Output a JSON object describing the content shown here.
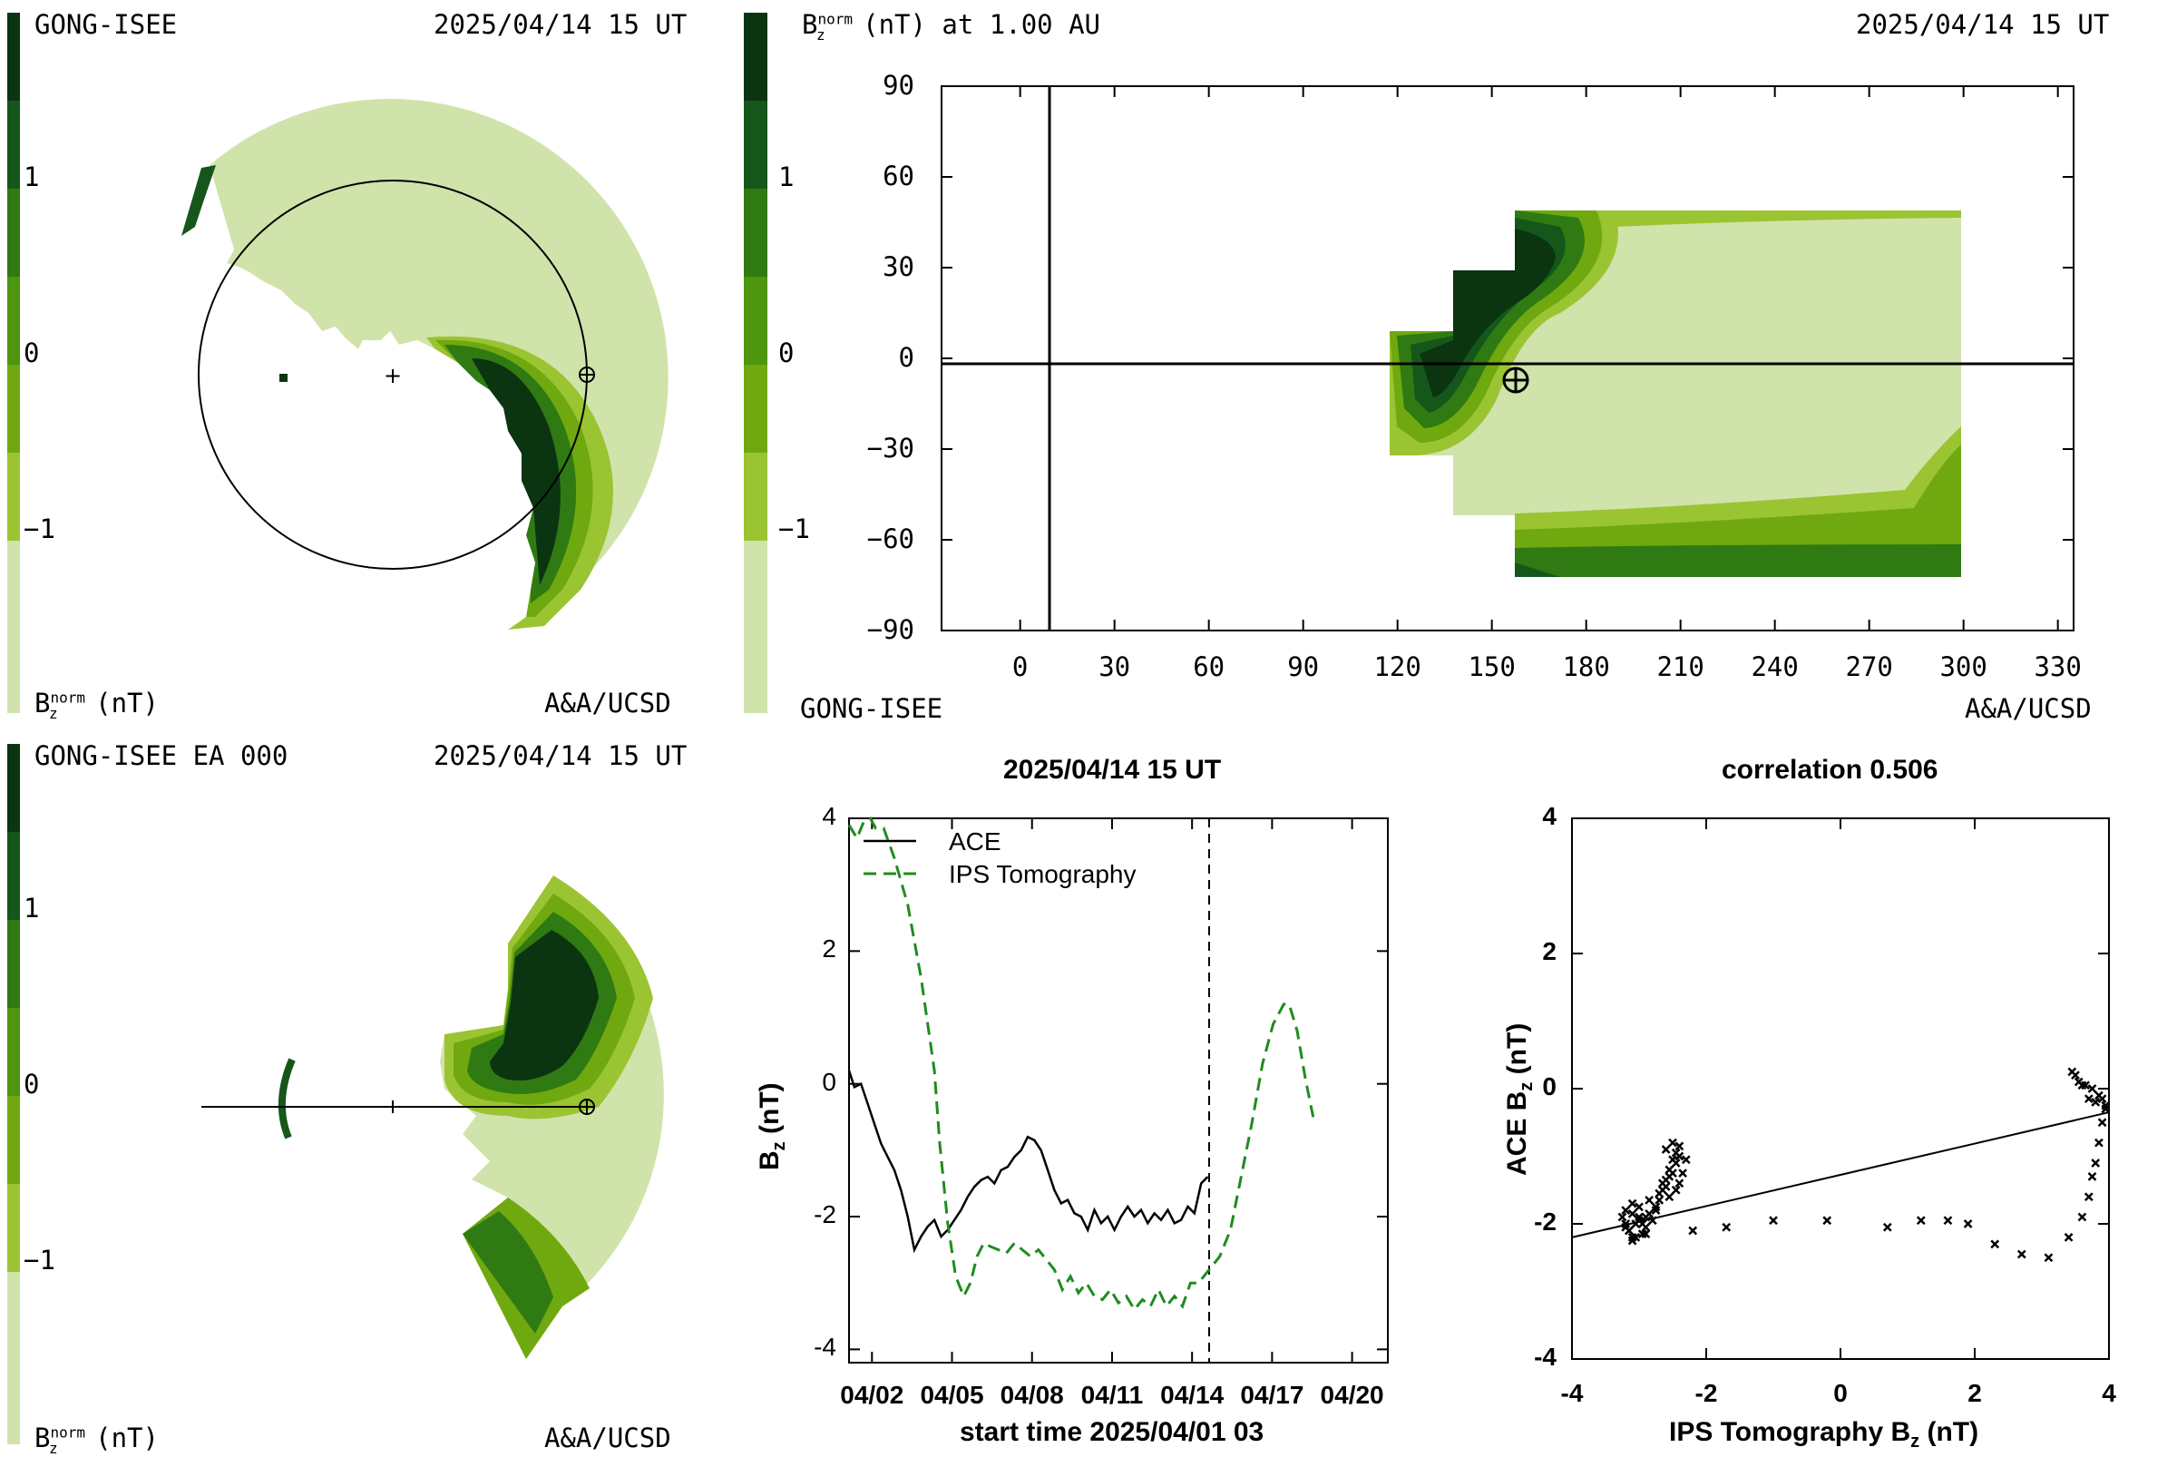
{
  "colors": {
    "levels": [
      "#d0e3ab",
      "#9ac432",
      "#6fa90f",
      "#4e9510",
      "#2f7a12",
      "#15571b",
      "#0b3411"
    ],
    "obs": "#000000",
    "model": "#1f8c1f"
  },
  "panel_tl": {
    "left_label": "GONG-ISEE",
    "right_label": "2025/04/14 15 UT",
    "bottom_left_label": "B",
    "bottom_left_sup": "norm",
    "bottom_left_sub": "z",
    "bottom_left_unit": "(nT)",
    "bottom_right_label": "A&A/UCSD"
  },
  "panel_tr": {
    "title": "B",
    "title_sup": "norm",
    "title_sub": "z",
    "title_rest": "(nT) at 1.00 AU",
    "right_label": "2025/04/14 15 UT",
    "bottom_left_label": "GONG-ISEE",
    "bottom_right_label": "A&A/UCSD",
    "earth_symbol": "⊕"
  },
  "panel_bl": {
    "left_label": "GONG-ISEE EA 000",
    "right_label": "2025/04/14 15 UT",
    "bottom_left_label": "B",
    "bottom_left_sup": "norm",
    "bottom_left_sub": "z",
    "bottom_left_unit": "(nT)",
    "bottom_right_label": "A&A/UCSD"
  },
  "colorbar_ticks": [
    "1",
    "0",
    "−1"
  ],
  "chart_data": [
    {
      "type": "heatmap",
      "title": "B_z^norm (nT) at 1.00 AU",
      "xticks": [
        "0",
        "30",
        "60",
        "90",
        "120",
        "150",
        "180",
        "210",
        "240",
        "270",
        "300",
        "330"
      ],
      "yticks": [
        "90",
        "60",
        "30",
        "0",
        "−30",
        "−60",
        "−90"
      ],
      "xlim": [
        -25,
        335
      ],
      "ylim": [
        -90,
        90
      ],
      "earth": [
        150,
        -5
      ]
    },
    {
      "type": "line",
      "title": "2025/04/14 15 UT",
      "xlabel": "start time 2025/04/01 03",
      "ylabel": "B",
      "ylabel_sub": "z",
      "ylabel_unit": "(nT)",
      "xticks": [
        "04/02",
        "04/05",
        "04/08",
        "04/11",
        "04/14",
        "04/17",
        "04/20"
      ],
      "yticks": [
        "4",
        "2",
        "0",
        "-2",
        "-4"
      ],
      "xlim": [
        0,
        20.2
      ],
      "ylim": [
        -4.2,
        4
      ],
      "now": 13.5,
      "legend": [
        "ACE",
        "IPS Tomography"
      ],
      "series": [
        {
          "name": "ACE",
          "x": [
            0,
            0.2,
            0.45,
            0.7,
            0.95,
            1.2,
            1.45,
            1.7,
            1.95,
            2.2,
            2.45,
            2.7,
            2.95,
            3.2,
            3.45,
            3.7,
            3.95,
            4.2,
            4.45,
            4.7,
            4.95,
            5.2,
            5.45,
            5.7,
            5.95,
            6.2,
            6.45,
            6.7,
            6.95,
            7.2,
            7.45,
            7.7,
            7.95,
            8.2,
            8.45,
            8.7,
            8.95,
            9.2,
            9.45,
            9.7,
            9.95,
            10.2,
            10.45,
            10.7,
            10.95,
            11.2,
            11.45,
            11.7,
            11.95,
            12.2,
            12.45,
            12.7,
            12.95,
            13.2,
            13.45
          ],
          "y": [
            0.2,
            -0.05,
            0.0,
            -0.3,
            -0.6,
            -0.9,
            -1.1,
            -1.3,
            -1.6,
            -2.0,
            -2.5,
            -2.3,
            -2.15,
            -2.05,
            -2.3,
            -2.2,
            -2.05,
            -1.9,
            -1.7,
            -1.55,
            -1.45,
            -1.4,
            -1.5,
            -1.3,
            -1.25,
            -1.1,
            -1.0,
            -0.8,
            -0.85,
            -1.0,
            -1.3,
            -1.6,
            -1.8,
            -1.75,
            -1.95,
            -2.0,
            -2.2,
            -1.9,
            -2.1,
            -2.0,
            -2.2,
            -2.0,
            -1.85,
            -2.0,
            -1.9,
            -2.1,
            -1.95,
            -2.05,
            -1.9,
            -2.1,
            -2.05,
            -1.85,
            -1.95,
            -1.5,
            -1.4
          ]
        },
        {
          "name": "IPS Tomography",
          "x": [
            0,
            0.3,
            0.55,
            0.8,
            1.0,
            1.3,
            1.7,
            2.2,
            2.7,
            3.2,
            3.4,
            3.7,
            4.0,
            4.3,
            4.55,
            4.8,
            5.05,
            5.3,
            5.6,
            5.9,
            6.2,
            6.5,
            6.8,
            7.1,
            7.4,
            7.7,
            8.0,
            8.3,
            8.6,
            8.9,
            9.2,
            9.5,
            9.8,
            10.1,
            10.4,
            10.7,
            11.0,
            11.3,
            11.6,
            11.9,
            12.2,
            12.5,
            12.8,
            13.1,
            13.5,
            13.9,
            14.3,
            14.7,
            15.1,
            15.5,
            15.9,
            16.3,
            16.5,
            16.8,
            17.1,
            17.4
          ],
          "y": [
            3.9,
            3.7,
            3.95,
            4.2,
            3.85,
            3.85,
            3.4,
            2.7,
            1.6,
            0.2,
            -0.9,
            -2.1,
            -2.9,
            -3.2,
            -3.0,
            -2.6,
            -2.4,
            -2.45,
            -2.5,
            -2.55,
            -2.4,
            -2.5,
            -2.6,
            -2.5,
            -2.65,
            -2.8,
            -3.1,
            -2.9,
            -3.15,
            -3.0,
            -3.2,
            -3.25,
            -3.1,
            -3.3,
            -3.2,
            -3.4,
            -3.25,
            -3.35,
            -3.1,
            -3.35,
            -3.2,
            -3.35,
            -3.0,
            -3.0,
            -2.8,
            -2.6,
            -2.2,
            -1.4,
            -0.6,
            0.3,
            0.9,
            1.2,
            1.2,
            0.8,
            0.1,
            -0.5
          ]
        }
      ]
    },
    {
      "type": "scatter",
      "title": "correlation 0.506",
      "xlabel": "IPS Tomography B",
      "xlabel_sub": "z",
      "xlabel_unit": "(nT)",
      "ylabel": "ACE B",
      "ylabel_sub": "z",
      "ylabel_unit": "(nT)",
      "xticks": [
        "-4",
        "-2",
        "0",
        "2",
        "4"
      ],
      "yticks": [
        "4",
        "2",
        "0",
        "-2",
        "-4"
      ],
      "xlim": [
        -4,
        4
      ],
      "ylim": [
        -4,
        4
      ],
      "fit": [
        [
          -4,
          -2.2
        ],
        [
          4,
          -0.35
        ]
      ],
      "x": [
        -3.25,
        -3.2,
        -3.15,
        -3.1,
        -3.05,
        -3.0,
        -2.95,
        -3.2,
        -3.1,
        -3.0,
        -2.9,
        -3.15,
        -3.05,
        -2.95,
        -2.85,
        -3.1,
        -3.0,
        -2.9,
        -3.2,
        -3.1,
        -2.9,
        -2.8,
        -2.75,
        -2.7,
        -2.65,
        -2.6,
        -2.55,
        -2.5,
        -2.45,
        -2.4,
        -2.65,
        -2.55,
        -2.45,
        -2.6,
        -2.5,
        -2.4,
        -2.7,
        -2.6,
        -2.5,
        -2.55,
        -2.45,
        -2.35,
        -2.3,
        -2.4,
        -2.85,
        -2.75,
        -2.2,
        -1.7,
        -1.0,
        -0.2,
        0.7,
        1.2,
        1.6,
        1.9,
        2.3,
        2.7,
        3.1,
        3.4,
        3.6,
        3.7,
        3.75,
        3.8,
        3.85,
        3.9,
        3.95,
        3.85,
        3.75,
        3.65,
        3.55,
        3.5,
        3.45,
        3.6,
        3.7,
        3.8,
        3.9,
        3.95
      ],
      "y": [
        -1.9,
        -2.0,
        -2.1,
        -2.2,
        -2.0,
        -1.9,
        -2.15,
        -1.8,
        -1.85,
        -1.95,
        -2.05,
        -2.1,
        -2.2,
        -2.0,
        -1.85,
        -1.7,
        -1.75,
        -1.9,
        -2.05,
        -2.25,
        -2.15,
        -1.95,
        -1.8,
        -1.65,
        -1.5,
        -1.35,
        -1.2,
        -1.05,
        -0.95,
        -0.85,
        -1.4,
        -1.3,
        -1.1,
        -0.9,
        -0.8,
        -1.0,
        -1.55,
        -1.45,
        -1.25,
        -1.6,
        -1.5,
        -1.25,
        -1.05,
        -1.4,
        -1.65,
        -1.75,
        -2.1,
        -2.05,
        -1.95,
        -1.95,
        -2.05,
        -1.95,
        -1.95,
        -2.0,
        -2.3,
        -2.45,
        -2.5,
        -2.2,
        -1.9,
        -1.6,
        -1.3,
        -1.1,
        -0.8,
        -0.5,
        -0.3,
        -0.1,
        0.0,
        0.05,
        0.1,
        0.2,
        0.25,
        0.05,
        -0.15,
        -0.2,
        -0.15,
        -0.25
      ]
    }
  ]
}
